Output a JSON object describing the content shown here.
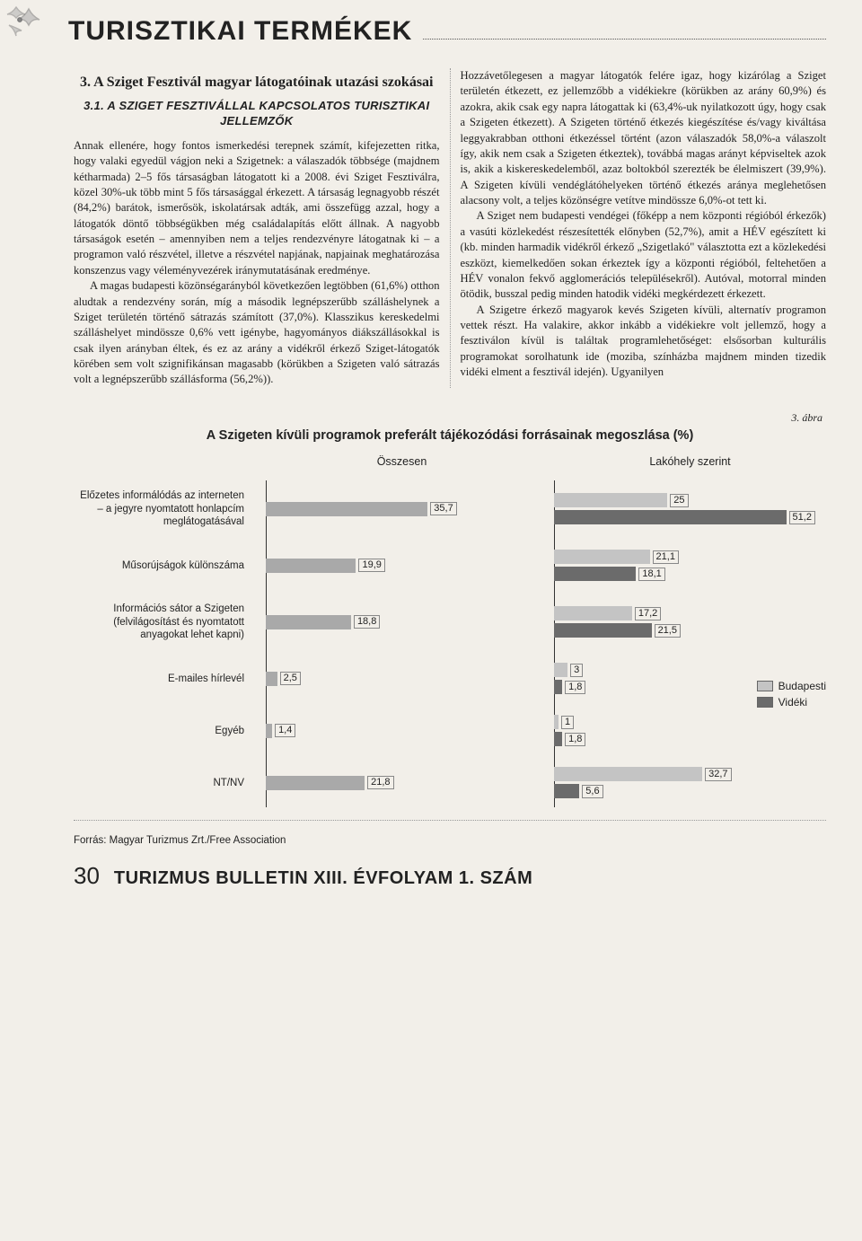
{
  "page": {
    "header_title": "TURISZTIKAI TERMÉKEK",
    "footer_page": "30",
    "footer_text": "TURIZMUS BULLETIN XIII. ÉVFOLYAM 1. SZÁM"
  },
  "left_col": {
    "section_title": "3. A Sziget Fesztivál magyar látogatóinak utazási szokásai",
    "subsection_title": "3.1. A SZIGET FESZTIVÁLLAL KAPCSOLATOS TURISZTIKAI JELLEMZŐK",
    "p1": "Annak ellenére, hogy fontos ismerkedési terepnek számít, kifejezetten ritka, hogy valaki egyedül vágjon neki a Szigetnek: a válaszadók többsége (majdnem kétharmada) 2–5 fős társaságban látogatott ki a 2008. évi Sziget Fesztiválra, közel 30%-uk több mint 5 fős társasággal érkezett. A társaság legnagyobb részét (84,2%) barátok, ismerősök, iskolatársak adták, ami összefügg azzal, hogy a látogatók döntő többségükben még családalapítás előtt állnak. A nagyobb társaságok esetén – amennyiben nem a teljes rendezvényre látogatnak ki – a programon való részvétel, illetve a részvétel napjának, napjainak meghatározása konszenzus vagy véleményvezérek iránymutatásának eredménye.",
    "p2": "A magas budapesti közönségarányból következően legtöbben (61,6%) otthon aludtak a rendezvény során, míg a második legnépszerűbb szálláshelynek a Sziget területén történő sátrazás számított (37,0%). Klasszikus kereskedelmi szálláshelyet mindössze 0,6% vett igénybe, hagyományos diákszállásokkal is csak ilyen arányban éltek, és ez az arány a vidékről érkező Sziget-látogatók körében sem volt szignifikánsan magasabb (körükben a Szigeten való sátrazás volt a legnépszerűbb szállásforma (56,2%))."
  },
  "right_col": {
    "p1": "Hozzávetőlegesen a magyar látogatók felére igaz, hogy kizárólag a Sziget területén étkezett, ez jellemzőbb a vidékiekre (körükben az arány 60,9%) és azokra, akik csak egy napra látogattak ki (63,4%-uk nyilatkozott úgy, hogy csak a Szigeten étkezett). A Szigeten történő étkezés kiegészítése és/vagy kiváltása leggyakrabban otthoni étkezéssel történt (azon válaszadók 58,0%-a válaszolt így, akik nem csak a Szigeten étkeztek), továbbá magas arányt képviseltek azok is, akik a kiskereskedelemből, azaz boltokból szerezték be élelmiszert (39,9%). A Szigeten kívüli vendéglátóhelyeken történő étkezés aránya meglehetősen alacsony volt, a teljes közönségre vetítve mindössze 6,0%-ot tett ki.",
    "p2": "A Sziget nem budapesti vendégei (főképp a nem központi régióból érkezők) a vasúti közlekedést részesítették előnyben (52,7%), amit a HÉV egészített ki (kb. minden harmadik vidékről érkező „Szigetlakó\" választotta ezt a közlekedési eszközt, kiemelkedően sokan érkeztek így a központi régióból, feltehetően a HÉV vonalon fekvő agglomerációs településekről). Autóval, motorral minden ötödik, busszal pedig minden hatodik vidéki megkérdezett érkezett.",
    "p3": "A Szigetre érkező magyarok kevés Szigeten kívüli, alternatív programon vettek részt. Ha valakire, akkor inkább a vidékiekre volt jellemző, hogy a fesztiválon kívül is találtak programlehetőséget: elsősorban kulturális programokat sorolhatunk ide (moziba, színházba majdnem minden tizedik vidéki elment a fesztivál idején). Ugyanilyen"
  },
  "figure": {
    "label": "3. ábra",
    "title": "A Szigeten kívüli programok preferált tájékozódási forrásainak megoszlása (%)",
    "col1_head": "Összesen",
    "col2_head": "Lakóhely szerint",
    "x_max": 60,
    "colors": {
      "single": "#a9a9a9",
      "bp": "#c4c4c4",
      "vid": "#6b6b6b",
      "bg": "#f2efe9"
    },
    "legend": {
      "bp": "Budapesti",
      "vid": "Vidéki"
    },
    "rows": [
      {
        "tall": true,
        "label": "Előzetes informálódás az interneten – a jegyre nyomtatott honlapcím meglátogatásával",
        "total": 35.7,
        "bp": 25.0,
        "vid": 51.2
      },
      {
        "label": "Műsorújságok különszáma",
        "total": 19.9,
        "bp": 21.1,
        "vid": 18.1
      },
      {
        "tall": true,
        "label": "Információs sátor a Szigeten (felvilágosítást és nyomtatott anyagokat lehet kapni)",
        "total": 18.8,
        "bp": 17.2,
        "vid": 21.5
      },
      {
        "label": "E-mailes hírlevél",
        "total": 2.5,
        "bp": 3.0,
        "vid": 1.8
      },
      {
        "label": "Egyéb",
        "total": 1.4,
        "bp": 1.0,
        "vid": 1.8
      },
      {
        "label": "NT/NV",
        "total": 21.8,
        "bp": 32.7,
        "vid": 5.6
      }
    ],
    "source": "Forrás: Magyar Turizmus Zrt./Free Association"
  }
}
